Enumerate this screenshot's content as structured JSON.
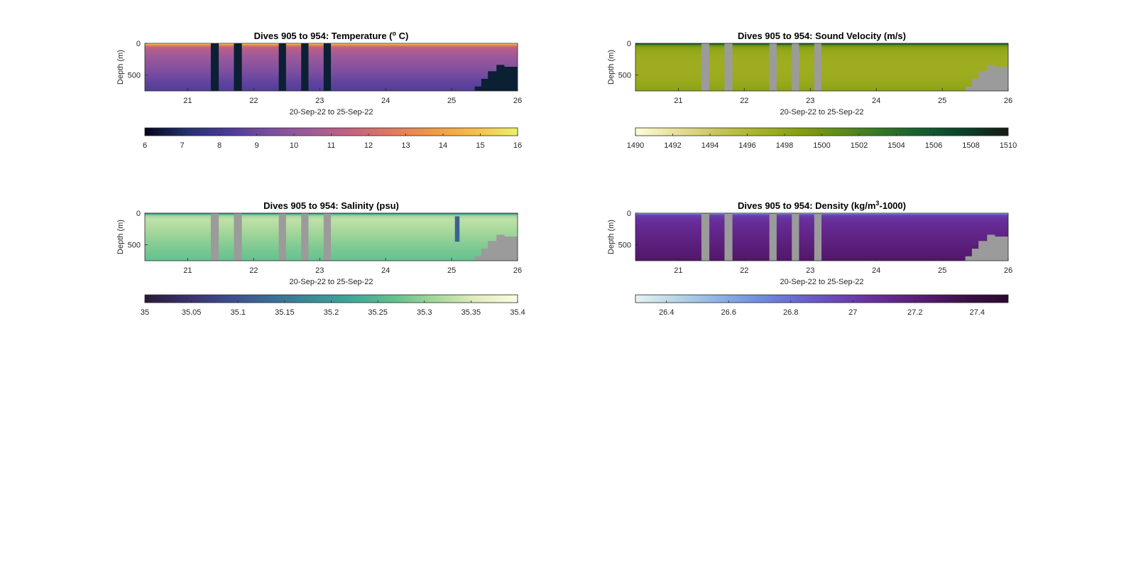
{
  "figure": {
    "background": "#ffffff",
    "gap_color_temperature": "#0b2033",
    "gap_color_other": "#9b9b9b"
  },
  "chart_data": [
    {
      "type": "heatmap",
      "title_prefix": "Dives 905 to 954: Temperature (",
      "title_sup": "o",
      "title_suffix": " C)",
      "ylabel": "Depth (m)",
      "xlabel": "20-Sep-22 to 25-Sep-22",
      "xlim": [
        20.35,
        26.0
      ],
      "x_ticks": [
        21,
        22,
        23,
        24,
        25,
        26
      ],
      "ylim": [
        0,
        750
      ],
      "y_reversed": true,
      "y_ticks": [
        0,
        500
      ],
      "colorbar": {
        "range": [
          6,
          16
        ],
        "ticks": [
          "6",
          "7",
          "8",
          "9",
          "10",
          "11",
          "12",
          "13",
          "14",
          "15",
          "16"
        ],
        "colors": [
          "#03051a",
          "#24306e",
          "#4a3a9a",
          "#7a4ea0",
          "#a05a9a",
          "#c6627f",
          "#e27a5e",
          "#f19b43",
          "#f6c048",
          "#eaf26a"
        ]
      },
      "profile": {
        "depth": [
          0,
          10,
          30,
          60,
          100,
          200,
          400,
          600,
          750
        ],
        "value": [
          15.6,
          14.8,
          13.0,
          11.5,
          11.0,
          10.4,
          9.6,
          8.8,
          8.4
        ]
      },
      "data_gaps": [
        [
          21.35,
          21.47
        ],
        [
          21.7,
          21.82
        ],
        [
          22.38,
          22.49
        ],
        [
          22.72,
          22.83
        ],
        [
          23.06,
          23.17
        ]
      ],
      "bathymetry": [
        [
          25.35,
          680
        ],
        [
          25.45,
          560
        ],
        [
          25.55,
          440
        ],
        [
          25.68,
          340
        ],
        [
          25.8,
          370
        ],
        [
          26.0,
          370
        ]
      ],
      "anomaly": null
    },
    {
      "type": "heatmap",
      "title_prefix": "Dives 905 to 954: Sound Velocity (m/s)",
      "title_sup": "",
      "title_suffix": "",
      "ylabel": "Depth (m)",
      "xlabel": "20-Sep-22 to 25-Sep-22",
      "xlim": [
        20.35,
        26.0
      ],
      "x_ticks": [
        21,
        22,
        23,
        24,
        25,
        26
      ],
      "ylim": [
        0,
        750
      ],
      "y_reversed": true,
      "y_ticks": [
        0,
        500
      ],
      "colorbar": {
        "range": [
          1490,
          1510
        ],
        "ticks": [
          "1490",
          "1492",
          "1494",
          "1496",
          "1498",
          "1500",
          "1502",
          "1504",
          "1506",
          "1508",
          "1510"
        ],
        "colors": [
          "#fdfcd6",
          "#e7df98",
          "#c8c45a",
          "#a7b226",
          "#849f0f",
          "#5d8b18",
          "#317426",
          "#125c30",
          "#0a3f28",
          "#161a14"
        ]
      },
      "profile": {
        "depth": [
          0,
          10,
          30,
          60,
          100,
          200,
          400,
          600,
          750
        ],
        "value": [
          1506.5,
          1504.8,
          1501.0,
          1498.8,
          1498.0,
          1497.4,
          1497.2,
          1497.6,
          1498.4
        ]
      },
      "data_gaps": [
        [
          21.35,
          21.47
        ],
        [
          21.7,
          21.82
        ],
        [
          22.38,
          22.49
        ],
        [
          22.72,
          22.83
        ],
        [
          23.06,
          23.17
        ]
      ],
      "bathymetry": [
        [
          25.35,
          680
        ],
        [
          25.45,
          560
        ],
        [
          25.55,
          440
        ],
        [
          25.68,
          340
        ],
        [
          25.8,
          370
        ],
        [
          26.0,
          370
        ]
      ],
      "anomaly": null
    },
    {
      "type": "heatmap",
      "title_prefix": "Dives 905 to 954: Salinity (psu)",
      "title_sup": "",
      "title_suffix": "",
      "ylabel": "Depth (m)",
      "xlabel": "20-Sep-22 to 25-Sep-22",
      "xlim": [
        20.35,
        26.0
      ],
      "x_ticks": [
        21,
        22,
        23,
        24,
        25,
        26
      ],
      "ylim": [
        0,
        750
      ],
      "y_reversed": true,
      "y_ticks": [
        0,
        500
      ],
      "colorbar": {
        "range": [
          35.0,
          35.4
        ],
        "ticks": [
          "35",
          "35.05",
          "35.1",
          "35.15",
          "35.2",
          "35.25",
          "35.3",
          "35.35",
          "35.4"
        ],
        "colors": [
          "#291a35",
          "#3b2f6a",
          "#3d4c8c",
          "#3a6c95",
          "#3a8b98",
          "#3fa896",
          "#61c08e",
          "#a5d79a",
          "#e2edbe",
          "#fdfbe2"
        ]
      },
      "profile": {
        "depth": [
          0,
          10,
          40,
          100,
          200,
          400,
          600,
          750
        ],
        "value": [
          35.18,
          35.22,
          35.31,
          35.33,
          35.32,
          35.3,
          35.28,
          35.27
        ]
      },
      "data_gaps": [
        [
          21.35,
          21.47
        ],
        [
          21.7,
          21.82
        ],
        [
          22.38,
          22.49
        ],
        [
          22.72,
          22.83
        ],
        [
          23.06,
          23.17
        ]
      ],
      "bathymetry": [
        [
          25.35,
          680
        ],
        [
          25.45,
          560
        ],
        [
          25.55,
          440
        ],
        [
          25.68,
          340
        ],
        [
          25.8,
          370
        ],
        [
          26.0,
          370
        ]
      ],
      "anomaly": {
        "x": [
          25.05,
          25.12
        ],
        "value": 35.12
      }
    },
    {
      "type": "heatmap",
      "title_prefix": "Dives 905 to 954: Density (kg/m",
      "title_sup": "3",
      "title_suffix": "-1000)",
      "ylabel": "Depth (m)",
      "xlabel": "20-Sep-22 to 25-Sep-22",
      "xlim": [
        20.35,
        26.0
      ],
      "x_ticks": [
        21,
        22,
        23,
        24,
        25,
        26
      ],
      "ylim": [
        0,
        750
      ],
      "y_reversed": true,
      "y_ticks": [
        0,
        500
      ],
      "colorbar": {
        "range": [
          26.3,
          27.5
        ],
        "ticks": [
          "26.4",
          "26.6",
          "26.8",
          "27",
          "27.2",
          "27.4"
        ],
        "colors": [
          "#e8f1f3",
          "#b7d5e6",
          "#8fb3e4",
          "#6f8ce0",
          "#6a64cf",
          "#6a43b4",
          "#652a93",
          "#561a70",
          "#3a0f46",
          "#2b0a2e"
        ]
      },
      "profile": {
        "depth": [
          0,
          10,
          40,
          100,
          200,
          400,
          600,
          750
        ],
        "value": [
          26.55,
          26.8,
          27.0,
          27.06,
          27.1,
          27.16,
          27.22,
          27.26
        ]
      },
      "data_gaps": [
        [
          21.35,
          21.47
        ],
        [
          21.7,
          21.82
        ],
        [
          22.38,
          22.49
        ],
        [
          22.72,
          22.83
        ],
        [
          23.06,
          23.17
        ]
      ],
      "bathymetry": [
        [
          25.35,
          680
        ],
        [
          25.45,
          560
        ],
        [
          25.55,
          440
        ],
        [
          25.68,
          340
        ],
        [
          25.8,
          370
        ],
        [
          26.0,
          370
        ]
      ],
      "anomaly": null
    }
  ]
}
